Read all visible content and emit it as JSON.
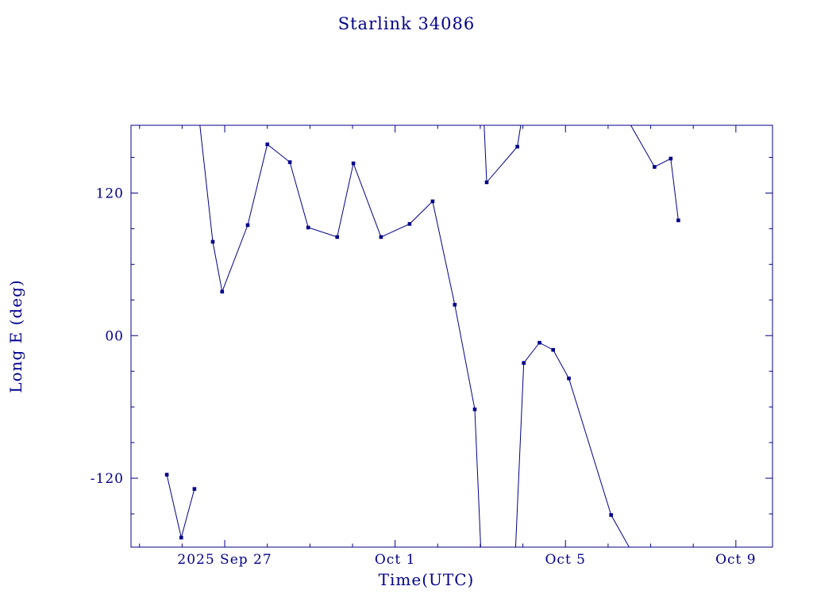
{
  "title": "Starlink 34086",
  "chart_data": {
    "type": "line",
    "title": "Starlink 34086",
    "xlabel": "Time(UTC)",
    "ylabel": "Long E (deg)",
    "x_value_reference": "days relative to 2025 Sep 27 00:00 UTC",
    "xlim": [
      -2.2,
      12.86
    ],
    "ylim": [
      -178,
      177
    ],
    "grid": false,
    "legend": false,
    "line_color": "#00008B",
    "background": "#ffffff",
    "marker": "square",
    "x_major_ticks": [
      {
        "value": 0,
        "label": "2025 Sep 27"
      },
      {
        "value": 4,
        "label": "Oct 1"
      },
      {
        "value": 8,
        "label": "Oct 5"
      },
      {
        "value": 12,
        "label": "Oct 9"
      }
    ],
    "x_minor_ticks": [
      -2,
      -1,
      1,
      2,
      3,
      5,
      6,
      7,
      9,
      10,
      11
    ],
    "y_major_ticks": [
      {
        "value": 120,
        "label": "120"
      },
      {
        "value": 0,
        "label": "00"
      },
      {
        "value": -120,
        "label": "-120"
      }
    ],
    "y_minor_ticks": [
      -150,
      -90,
      -60,
      -30,
      30,
      60,
      90,
      150
    ],
    "segments": [
      [
        [
          -1.36,
          -117
        ],
        [
          -1.02,
          -170
        ],
        [
          -0.71,
          -129
        ]
      ],
      [
        [
          -0.61,
          186
        ],
        [
          -0.28,
          79
        ],
        [
          -0.06,
          37
        ],
        [
          0.54,
          93
        ],
        [
          1.0,
          161
        ],
        [
          1.53,
          146
        ],
        [
          1.96,
          91
        ],
        [
          2.64,
          83
        ],
        [
          3.02,
          145
        ],
        [
          3.67,
          83
        ],
        [
          4.34,
          94
        ],
        [
          4.88,
          113
        ],
        [
          5.4,
          26
        ],
        [
          5.87,
          -62
        ],
        [
          6.02,
          -186
        ]
      ],
      [
        [
          6.08,
          186
        ],
        [
          6.15,
          129
        ],
        [
          6.87,
          159
        ],
        [
          6.99,
          186
        ]
      ],
      [
        [
          6.82,
          -186
        ],
        [
          7.02,
          -23
        ],
        [
          7.39,
          -6
        ],
        [
          7.71,
          -12
        ],
        [
          8.08,
          -36
        ],
        [
          9.07,
          -151
        ],
        [
          9.62,
          -186
        ]
      ],
      [
        [
          9.39,
          186
        ],
        [
          10.09,
          142
        ],
        [
          10.47,
          149
        ],
        [
          10.65,
          97
        ]
      ]
    ],
    "points": [
      [
        -1.36,
        -117
      ],
      [
        -1.02,
        -170
      ],
      [
        -0.71,
        -129
      ],
      [
        -0.28,
        79
      ],
      [
        -0.06,
        37
      ],
      [
        0.54,
        93
      ],
      [
        1.0,
        161
      ],
      [
        1.53,
        146
      ],
      [
        1.96,
        91
      ],
      [
        2.64,
        83
      ],
      [
        3.02,
        145
      ],
      [
        3.67,
        83
      ],
      [
        4.34,
        94
      ],
      [
        4.88,
        113
      ],
      [
        5.4,
        26
      ],
      [
        5.87,
        -62
      ],
      [
        6.15,
        129
      ],
      [
        6.87,
        159
      ],
      [
        7.02,
        -23
      ],
      [
        7.39,
        -6
      ],
      [
        7.71,
        -12
      ],
      [
        8.08,
        -36
      ],
      [
        9.07,
        -151
      ],
      [
        10.09,
        142
      ],
      [
        10.47,
        149
      ],
      [
        10.65,
        97
      ]
    ]
  }
}
